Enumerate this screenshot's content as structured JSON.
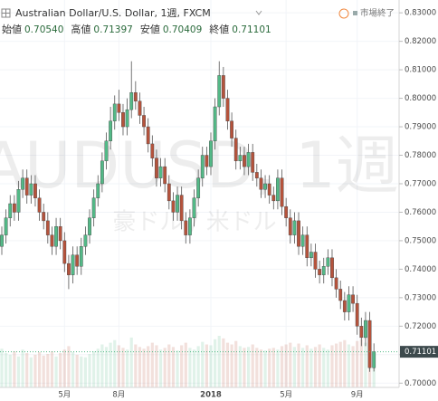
{
  "chart_data": {
    "type": "candlestick",
    "title": "Australian Dollar/U.S. Dollar, 1週, FXCM",
    "status": "市場終了",
    "watermark": "AUDUSD, 1週",
    "watermark_sub": "豪ドル / 米ドル",
    "ohlc_header": [
      {
        "name": "始値",
        "text": "0.70540"
      },
      {
        "name": "高値",
        "text": "0.71397"
      },
      {
        "name": "安値",
        "text": "0.70409"
      },
      {
        "name": "終値",
        "text": "0.71101"
      }
    ],
    "last_price": {
      "value": 0.71101,
      "label": "0.71101"
    },
    "up_color": "#53b987",
    "down_color": "#b5533c",
    "grid": true,
    "ylim": [
      0.6985,
      0.8345
    ],
    "yticks": [
      {
        "value": 0.7,
        "label": "0.70000"
      },
      {
        "value": 0.71,
        "label": "0.71000"
      },
      {
        "value": 0.72,
        "label": "0.72000"
      },
      {
        "value": 0.73,
        "label": "0.73000"
      },
      {
        "value": 0.74,
        "label": "0.74000"
      },
      {
        "value": 0.75,
        "label": "0.75000"
      },
      {
        "value": 0.76,
        "label": "0.76000"
      },
      {
        "value": 0.77,
        "label": "0.77000"
      },
      {
        "value": 0.78,
        "label": "0.78000"
      },
      {
        "value": 0.79,
        "label": "0.79000"
      },
      {
        "value": 0.8,
        "label": "0.80000"
      },
      {
        "value": 0.81,
        "label": "0.81000"
      },
      {
        "value": 0.82,
        "label": "0.82000"
      },
      {
        "value": 0.83,
        "label": "0.83000"
      }
    ],
    "categories": [
      null,
      null,
      null,
      null,
      null,
      null,
      null,
      null,
      null,
      null,
      null,
      null,
      null,
      null,
      null,
      "5月",
      null,
      null,
      null,
      null,
      null,
      null,
      null,
      null,
      null,
      null,
      null,
      null,
      "8月",
      null,
      null,
      null,
      null,
      null,
      null,
      null,
      null,
      null,
      null,
      null,
      null,
      null,
      null,
      null,
      null,
      null,
      null,
      null,
      null,
      null,
      "2018",
      null,
      null,
      null,
      null,
      null,
      null,
      null,
      null,
      null,
      null,
      null,
      null,
      null,
      null,
      null,
      null,
      null,
      "5月",
      null,
      null,
      null,
      null,
      null,
      null,
      null,
      null,
      null,
      null,
      null,
      null,
      null,
      null,
      null,
      null,
      "9月",
      null,
      null,
      null,
      null
    ],
    "open": [
      0.748,
      0.752,
      0.758,
      0.763,
      0.76,
      0.768,
      0.772,
      0.766,
      0.77,
      0.765,
      0.76,
      0.757,
      0.752,
      0.748,
      0.755,
      0.75,
      0.742,
      0.738,
      0.745,
      0.741,
      0.748,
      0.752,
      0.758,
      0.765,
      0.77,
      0.778,
      0.785,
      0.792,
      0.798,
      0.795,
      0.79,
      0.796,
      0.802,
      0.799,
      0.794,
      0.79,
      0.784,
      0.779,
      0.772,
      0.776,
      0.77,
      0.764,
      0.76,
      0.766,
      0.757,
      0.752,
      0.758,
      0.765,
      0.772,
      0.78,
      0.776,
      0.785,
      0.797,
      0.808,
      0.8,
      0.792,
      0.786,
      0.778,
      0.78,
      0.776,
      0.781,
      0.774,
      0.772,
      0.768,
      0.77,
      0.766,
      0.764,
      0.772,
      0.762,
      0.758,
      0.752,
      0.757,
      0.748,
      0.752,
      0.744,
      0.746,
      0.74,
      0.738,
      0.741,
      0.744,
      0.737,
      0.733,
      0.729,
      0.725,
      0.731,
      0.728,
      0.72,
      0.716,
      0.722,
      0.7054
    ],
    "high": [
      0.755,
      0.761,
      0.766,
      0.766,
      0.771,
      0.775,
      0.775,
      0.773,
      0.773,
      0.768,
      0.763,
      0.76,
      0.755,
      0.758,
      0.758,
      0.753,
      0.745,
      0.748,
      0.748,
      0.751,
      0.755,
      0.761,
      0.768,
      0.773,
      0.781,
      0.788,
      0.797,
      0.801,
      0.803,
      0.798,
      0.8,
      0.813,
      0.806,
      0.802,
      0.797,
      0.793,
      0.787,
      0.782,
      0.779,
      0.779,
      0.773,
      0.767,
      0.769,
      0.769,
      0.76,
      0.761,
      0.768,
      0.775,
      0.783,
      0.783,
      0.788,
      0.8,
      0.813,
      0.811,
      0.803,
      0.795,
      0.789,
      0.783,
      0.783,
      0.784,
      0.784,
      0.777,
      0.775,
      0.773,
      0.773,
      0.769,
      0.775,
      0.775,
      0.765,
      0.761,
      0.76,
      0.76,
      0.755,
      0.755,
      0.749,
      0.749,
      0.743,
      0.744,
      0.747,
      0.747,
      0.74,
      0.736,
      0.732,
      0.734,
      0.734,
      0.731,
      0.723,
      0.725,
      0.725,
      0.71397
    ],
    "low": [
      0.745,
      0.749,
      0.755,
      0.757,
      0.757,
      0.765,
      0.763,
      0.763,
      0.762,
      0.757,
      0.754,
      0.749,
      0.745,
      0.745,
      0.747,
      0.739,
      0.733,
      0.735,
      0.738,
      0.738,
      0.745,
      0.749,
      0.755,
      0.762,
      0.767,
      0.775,
      0.782,
      0.789,
      0.792,
      0.787,
      0.787,
      0.793,
      0.796,
      0.791,
      0.787,
      0.781,
      0.776,
      0.769,
      0.769,
      0.767,
      0.761,
      0.757,
      0.757,
      0.754,
      0.749,
      0.749,
      0.755,
      0.762,
      0.769,
      0.773,
      0.773,
      0.782,
      0.794,
      0.797,
      0.789,
      0.783,
      0.775,
      0.775,
      0.773,
      0.773,
      0.771,
      0.769,
      0.765,
      0.765,
      0.763,
      0.761,
      0.761,
      0.759,
      0.755,
      0.749,
      0.749,
      0.745,
      0.745,
      0.741,
      0.741,
      0.737,
      0.735,
      0.735,
      0.738,
      0.734,
      0.73,
      0.726,
      0.722,
      0.722,
      0.725,
      0.717,
      0.713,
      0.713,
      0.704,
      0.70409
    ],
    "close": [
      0.752,
      0.758,
      0.763,
      0.76,
      0.768,
      0.772,
      0.766,
      0.77,
      0.765,
      0.76,
      0.757,
      0.752,
      0.748,
      0.755,
      0.75,
      0.742,
      0.738,
      0.745,
      0.741,
      0.748,
      0.752,
      0.758,
      0.765,
      0.77,
      0.778,
      0.785,
      0.792,
      0.798,
      0.795,
      0.79,
      0.796,
      0.802,
      0.799,
      0.794,
      0.79,
      0.784,
      0.779,
      0.772,
      0.776,
      0.77,
      0.764,
      0.76,
      0.766,
      0.757,
      0.752,
      0.758,
      0.765,
      0.772,
      0.78,
      0.776,
      0.785,
      0.797,
      0.808,
      0.8,
      0.792,
      0.786,
      0.778,
      0.78,
      0.776,
      0.781,
      0.774,
      0.772,
      0.768,
      0.77,
      0.766,
      0.764,
      0.772,
      0.762,
      0.758,
      0.752,
      0.757,
      0.748,
      0.752,
      0.744,
      0.746,
      0.74,
      0.738,
      0.741,
      0.744,
      0.737,
      0.733,
      0.729,
      0.725,
      0.731,
      0.728,
      0.72,
      0.716,
      0.722,
      0.7054,
      0.71101
    ],
    "volume": [
      45,
      40,
      38,
      42,
      36,
      44,
      40,
      35,
      38,
      41,
      37,
      39,
      42,
      36,
      40,
      44,
      48,
      41,
      38,
      36,
      35,
      39,
      42,
      45,
      50,
      47,
      52,
      55,
      49,
      46,
      44,
      58,
      50,
      47,
      45,
      48,
      52,
      49,
      44,
      46,
      50,
      47,
      43,
      49,
      52,
      46,
      44,
      48,
      53,
      50,
      49,
      56,
      60,
      57,
      52,
      50,
      54,
      48,
      46,
      47,
      50,
      46,
      44,
      43,
      45,
      46,
      44,
      48,
      50,
      52,
      47,
      51,
      46,
      49,
      45,
      47,
      50,
      46,
      44,
      49,
      51,
      53,
      55,
      50,
      48,
      54,
      56,
      52,
      60,
      42
    ],
    "volume_max": 100
  }
}
